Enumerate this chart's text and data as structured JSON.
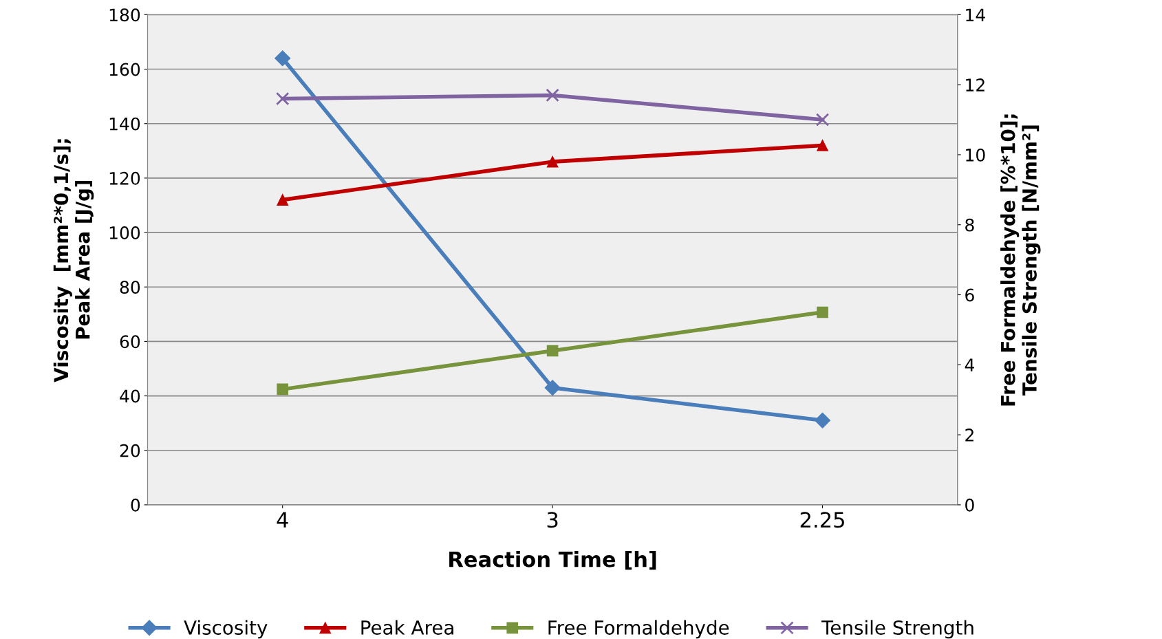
{
  "chart_data": {
    "type": "line",
    "xlabel": "Reaction Time [h]",
    "ylabel": "Viscosity  [mm²*0,1/s];\nPeak Area [J/g]",
    "y2label": "Free Formaldehyde [%*10];\nTensile Strength [N/mm²]",
    "categories": [
      "4",
      "3",
      "2.25"
    ],
    "series": [
      {
        "name": "Viscosity",
        "color": "#4a7ebb",
        "marker": "diamond",
        "values": [
          164,
          43,
          31
        ]
      },
      {
        "name": "Peak Area",
        "color": "#c00000",
        "marker": "triangle",
        "values": [
          112,
          126,
          132
        ]
      },
      {
        "name": "Free Formaldehyde",
        "color": "#77933c",
        "marker": "square",
        "axis": "y2",
        "values": [
          3.3,
          4.4,
          5.5
        ]
      },
      {
        "name": "Tensile Strength",
        "color": "#8064a2",
        "marker": "cross",
        "axis": "y2",
        "values": [
          11.6,
          11.7,
          11.0
        ]
      }
    ],
    "ylim": [
      0,
      180
    ],
    "yticks": [
      0,
      20,
      40,
      60,
      80,
      100,
      120,
      140,
      160,
      180
    ],
    "y2lim": [
      0,
      14
    ],
    "y2ticks": [
      0,
      2,
      4,
      6,
      8,
      10,
      12,
      14
    ],
    "grid": "y",
    "legend": "bottom",
    "line_style": "solid"
  }
}
